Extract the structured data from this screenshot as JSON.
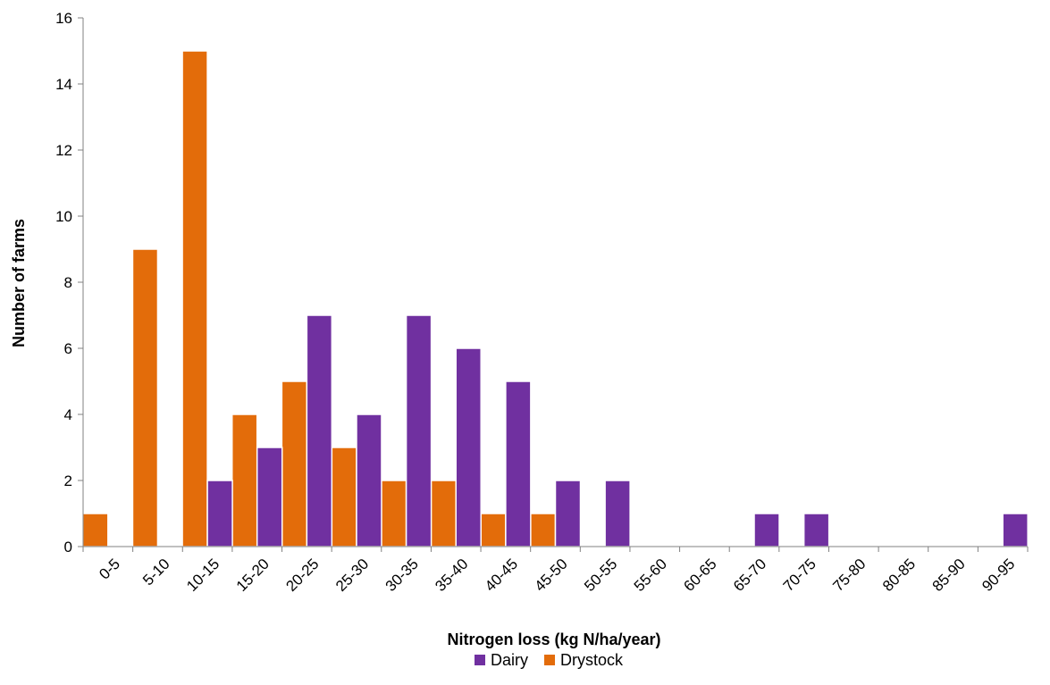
{
  "chart_data": {
    "type": "bar",
    "xlabel": "Nitrogen loss (kg N/ha/year)",
    "ylabel": "Number of farms",
    "ylim": [
      0,
      16
    ],
    "yticks": [
      0,
      2,
      4,
      6,
      8,
      10,
      12,
      14,
      16
    ],
    "grid": false,
    "legend_position": "bottom",
    "categories": [
      "0-5",
      "5-10",
      "10-15",
      "15-20",
      "20-25",
      "25-30",
      "30-35",
      "35-40",
      "40-45",
      "45-50",
      "50-55",
      "55-60",
      "60-65",
      "65-70",
      "70-75",
      "75-80",
      "80-85",
      "85-90",
      "90-95"
    ],
    "series": [
      {
        "name": "Drystock",
        "color": "#E36C0A",
        "values": [
          1,
          9,
          15,
          4,
          5,
          3,
          2,
          2,
          1,
          1,
          0,
          0,
          0,
          0,
          0,
          0,
          0,
          0,
          0
        ]
      },
      {
        "name": "Dairy",
        "color": "#7030A0",
        "values": [
          0,
          0,
          2,
          3,
          7,
          4,
          7,
          6,
          5,
          2,
          2,
          0,
          0,
          1,
          1,
          0,
          0,
          0,
          1
        ]
      }
    ],
    "legend_order": [
      "Dairy",
      "Drystock"
    ]
  }
}
